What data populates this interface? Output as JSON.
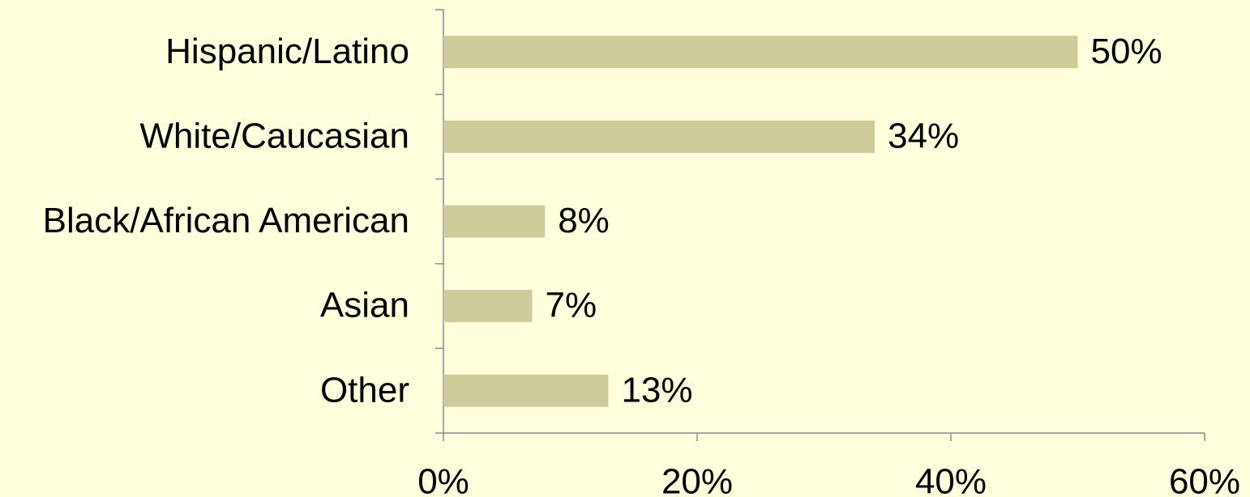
{
  "chart_data": {
    "type": "bar",
    "orientation": "horizontal",
    "categories": [
      "Hispanic/Latino",
      "White/Caucasian",
      "Black/African American",
      "Asian",
      "Other"
    ],
    "values": [
      50,
      34,
      8,
      7,
      13
    ],
    "value_labels": [
      "50%",
      "34%",
      "8%",
      "7%",
      "13%"
    ],
    "color": "#cccb99",
    "xlim": [
      0,
      60
    ],
    "xticks": [
      {
        "value": 0,
        "label": "0%"
      },
      {
        "value": 20,
        "label": "20%"
      },
      {
        "value": 40,
        "label": "40%"
      },
      {
        "value": 60,
        "label": "60%"
      }
    ],
    "grid": false
  }
}
